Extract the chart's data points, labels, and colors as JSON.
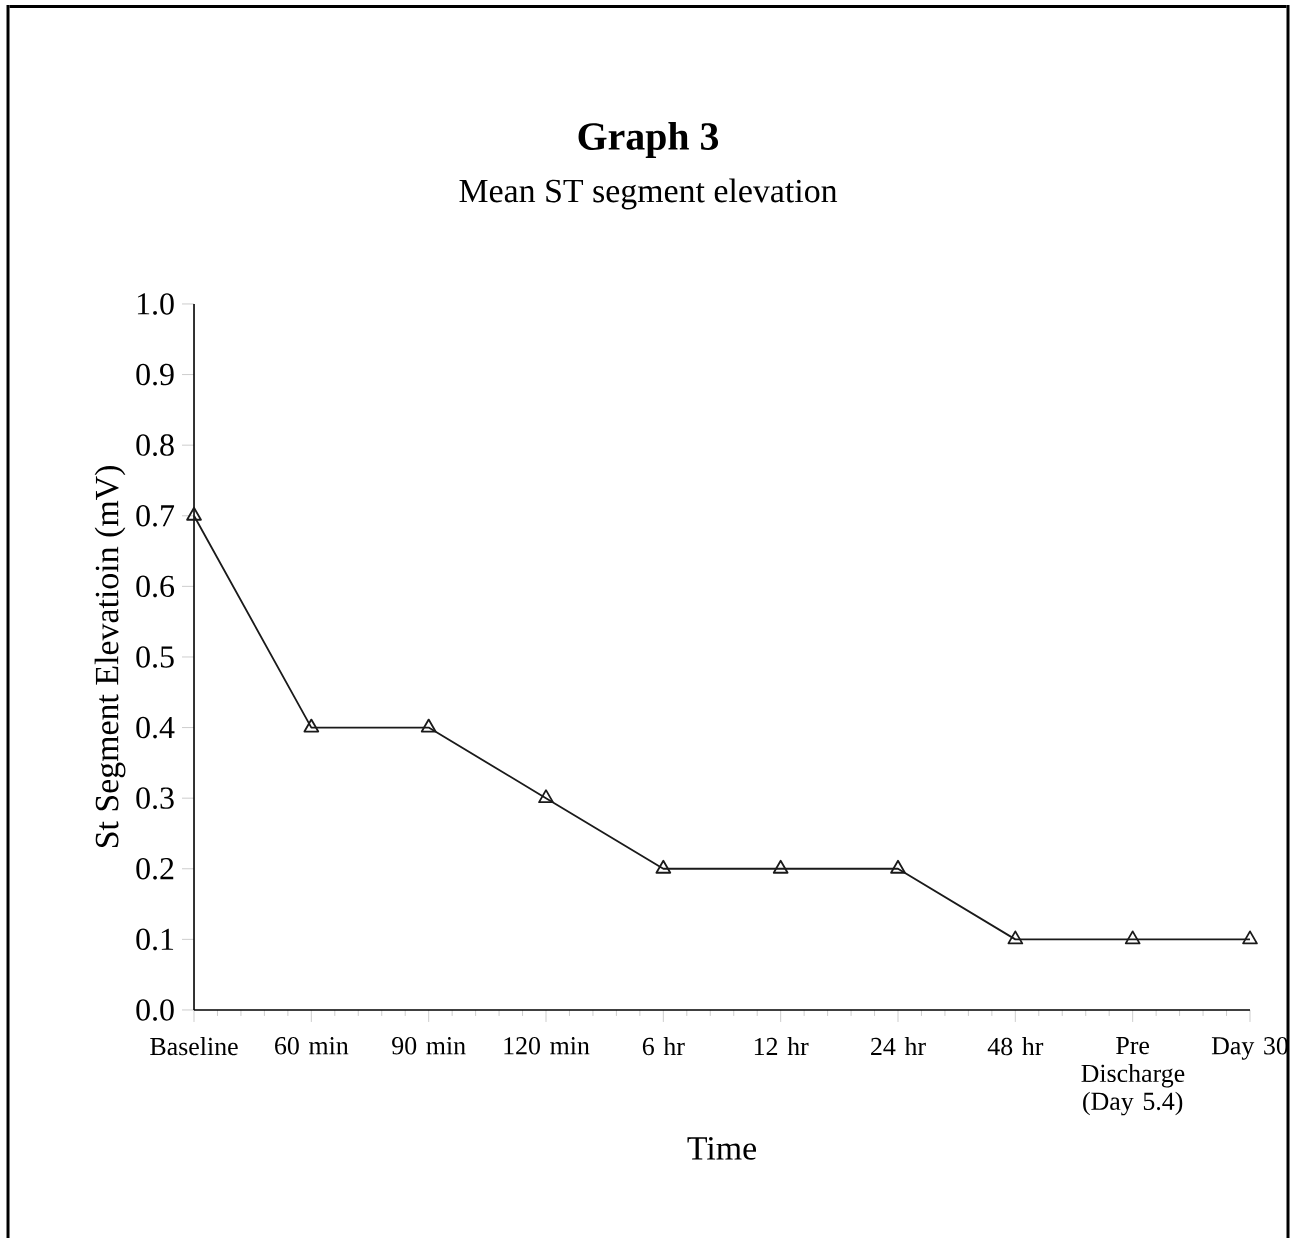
{
  "chart_data": {
    "type": "line",
    "title": "Graph 3",
    "subtitle": "Mean ST segment elevation",
    "xlabel": "Time",
    "ylabel": "St Segment Elevatioin (mV)",
    "categories": [
      "Baseline",
      "60 min",
      "90 min",
      "120 min",
      "6 hr",
      "12 hr",
      "24 hr",
      "48 hr",
      "Pre Discharge (Day 5.4)",
      "Day 30"
    ],
    "values": [
      0.7,
      0.4,
      0.4,
      0.3,
      0.2,
      0.2,
      0.2,
      0.1,
      0.1,
      0.1
    ],
    "color": "#1a1a1a",
    "marker": "triangle",
    "line_style": "solid",
    "grid": false,
    "ylim": [
      0,
      1
    ],
    "yticks": [
      {
        "value": 0,
        "label": "0.0"
      },
      0.1,
      0.2,
      0.3,
      0.4,
      0.5,
      0.6,
      0.7,
      0.8,
      0.9,
      {
        "value": 1,
        "label": "1.0"
      }
    ]
  }
}
